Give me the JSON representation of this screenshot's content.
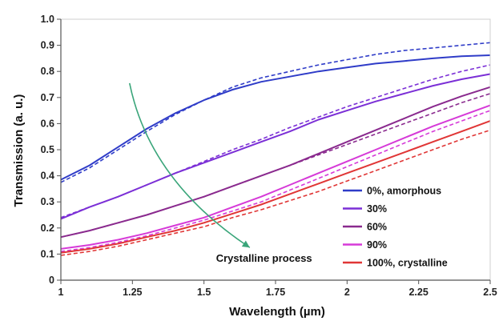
{
  "chart_data": {
    "type": "line",
    "title": "",
    "xlabel": "Wavelength (µm)",
    "ylabel": "Transmission (a. u.)",
    "xlim": [
      1,
      2.5
    ],
    "ylim": [
      0,
      1.0
    ],
    "x_ticks": [
      "1",
      "1.25",
      "1.5",
      "1.75",
      "2",
      "2.25",
      "2.5"
    ],
    "y_ticks": [
      "0",
      "0.1",
      "0.2",
      "0.3",
      "0.4",
      "0.5",
      "0.6",
      "0.7",
      "0.8",
      "0.9",
      "1.0"
    ],
    "grid": false,
    "legend_position": "bottom-right",
    "line_styles": {
      "measured": "solid",
      "fit": "dashed"
    },
    "series": [
      {
        "name": "0%, amorphous",
        "color": "#2f3cc8",
        "x": [
          1.0,
          1.1,
          1.2,
          1.3,
          1.4,
          1.5,
          1.6,
          1.7,
          1.8,
          1.9,
          2.0,
          2.1,
          2.2,
          2.3,
          2.4,
          2.5
        ],
        "measured": [
          0.385,
          0.44,
          0.51,
          0.58,
          0.64,
          0.69,
          0.73,
          0.76,
          0.78,
          0.8,
          0.815,
          0.83,
          0.84,
          0.85,
          0.858,
          0.862
        ],
        "fit": [
          0.375,
          0.43,
          0.5,
          0.57,
          0.635,
          0.69,
          0.74,
          0.775,
          0.8,
          0.825,
          0.845,
          0.865,
          0.88,
          0.89,
          0.9,
          0.91
        ]
      },
      {
        "name": "30%",
        "color": "#7b2fd6",
        "x": [
          1.0,
          1.1,
          1.2,
          1.3,
          1.4,
          1.5,
          1.6,
          1.7,
          1.8,
          1.9,
          2.0,
          2.1,
          2.2,
          2.3,
          2.4,
          2.5
        ],
        "measured": [
          0.235,
          0.28,
          0.32,
          0.365,
          0.41,
          0.45,
          0.49,
          0.53,
          0.57,
          0.615,
          0.65,
          0.685,
          0.715,
          0.745,
          0.77,
          0.79
        ],
        "fit": [
          0.24,
          0.28,
          0.32,
          0.365,
          0.41,
          0.455,
          0.5,
          0.54,
          0.585,
          0.625,
          0.665,
          0.7,
          0.735,
          0.77,
          0.8,
          0.825
        ]
      },
      {
        "name": "60%",
        "color": "#8a2a8e",
        "x": [
          1.0,
          1.1,
          1.2,
          1.3,
          1.4,
          1.5,
          1.6,
          1.7,
          1.8,
          1.9,
          2.0,
          2.1,
          2.2,
          2.3,
          2.4,
          2.5
        ],
        "measured": [
          0.165,
          0.19,
          0.22,
          0.25,
          0.285,
          0.32,
          0.36,
          0.4,
          0.44,
          0.485,
          0.53,
          0.575,
          0.62,
          0.665,
          0.705,
          0.74
        ],
        "fit": [
          0.165,
          0.19,
          0.22,
          0.25,
          0.285,
          0.32,
          0.36,
          0.4,
          0.44,
          0.48,
          0.52,
          0.56,
          0.6,
          0.64,
          0.68,
          0.715
        ]
      },
      {
        "name": "90%",
        "color": "#d63ad8",
        "x": [
          1.0,
          1.1,
          1.2,
          1.3,
          1.4,
          1.5,
          1.6,
          1.7,
          1.8,
          1.9,
          2.0,
          2.1,
          2.2,
          2.3,
          2.4,
          2.5
        ],
        "measured": [
          0.12,
          0.135,
          0.155,
          0.18,
          0.21,
          0.24,
          0.28,
          0.32,
          0.365,
          0.41,
          0.455,
          0.5,
          0.545,
          0.59,
          0.63,
          0.67
        ],
        "fit": [
          0.11,
          0.125,
          0.145,
          0.17,
          0.2,
          0.23,
          0.265,
          0.3,
          0.345,
          0.39,
          0.435,
          0.48,
          0.525,
          0.57,
          0.61,
          0.65
        ]
      },
      {
        "name": "100%, crystalline",
        "color": "#e03636",
        "x": [
          1.0,
          1.1,
          1.2,
          1.3,
          1.4,
          1.5,
          1.6,
          1.7,
          1.8,
          1.9,
          2.0,
          2.1,
          2.2,
          2.3,
          2.4,
          2.5
        ],
        "measured": [
          0.105,
          0.12,
          0.14,
          0.165,
          0.19,
          0.22,
          0.255,
          0.29,
          0.33,
          0.37,
          0.41,
          0.45,
          0.49,
          0.53,
          0.57,
          0.61
        ],
        "fit": [
          0.095,
          0.11,
          0.13,
          0.155,
          0.18,
          0.205,
          0.24,
          0.27,
          0.305,
          0.34,
          0.38,
          0.42,
          0.46,
          0.5,
          0.54,
          0.575
        ]
      }
    ],
    "annotations": [
      {
        "text": "Crystalline process",
        "arrow_color": "#3aa57a",
        "arrow_from": [
          1.24,
          0.755
        ],
        "arrow_ctrl": [
          1.31,
          0.38
        ],
        "arrow_to": [
          1.66,
          0.125
        ],
        "text_at": [
          1.71,
          0.07
        ]
      }
    ]
  }
}
